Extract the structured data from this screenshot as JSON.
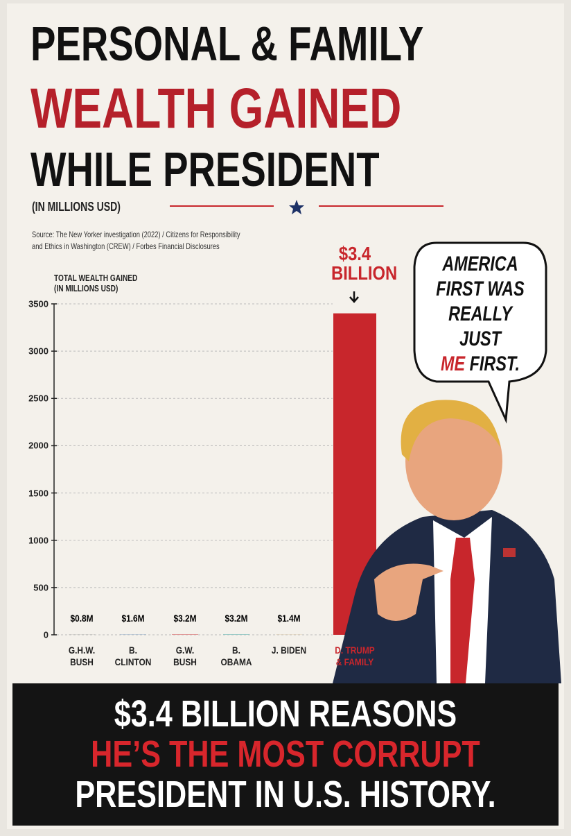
{
  "title": [
    "PERSONAL & FAMILY",
    "WEALTH GAINED",
    "WHILE PRESIDENT"
  ],
  "subtitle": "(IN MILLIONS USD)",
  "source": [
    "Source: The New Yorker investigation (2022) / Citizens for Responsibility",
    "and Ethics in Washington (CREW) / Forbes Financial Disclosures"
  ],
  "chart_data": {
    "type": "bar",
    "y_label": [
      "TOTAL WEALTH GAINED",
      "(IN MILLIONS USD)"
    ],
    "categories": [
      "G.H.W. BUSH",
      "B. CLINTON",
      "G.W. BUSH",
      "B. OBAMA",
      "J. BIDEN",
      "D. TRUMP & FAMILY"
    ],
    "values": [
      0.8,
      1.6,
      3.2,
      3.2,
      1.4,
      3400
    ],
    "value_labels": [
      "$0.8M",
      "$1.6M",
      "$3.2M",
      "$3.2M",
      "$1.4M",
      "$3.4 BILLION"
    ],
    "colors": [
      "#3a3a3a",
      "#1f5fa8",
      "#c8262c",
      "#2a9a9a",
      "#c8a060",
      "#c8262c"
    ],
    "ylim": [
      0,
      3500
    ],
    "yticks": [
      0,
      500,
      1000,
      1500,
      2000,
      2500,
      3000,
      3500
    ],
    "grid": true
  },
  "speech_bubble": [
    "AMERICA",
    "FIRST WAS",
    "REALLY JUST",
    "ME",
    "FIRST."
  ],
  "footer": [
    "$3.4 BILLION REASONS",
    "HE’S THE MOST CORRUPT",
    "PRESIDENT IN U.S. HISTORY."
  ]
}
